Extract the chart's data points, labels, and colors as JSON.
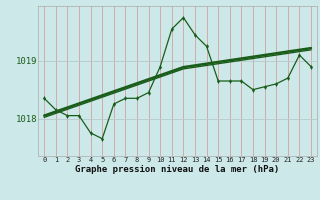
{
  "xlabel": "Graphe pression niveau de la mer (hPa)",
  "background_color": "#cce8e8",
  "grid_color_v": "#d4a0a0",
  "grid_color_h": "#b8c8c8",
  "line_color": "#1a5c1a",
  "hours": [
    0,
    1,
    2,
    3,
    4,
    5,
    6,
    7,
    8,
    9,
    10,
    11,
    12,
    13,
    14,
    15,
    16,
    17,
    18,
    19,
    20,
    21,
    22,
    23
  ],
  "pressure": [
    1018.35,
    1018.15,
    1018.05,
    1018.05,
    1017.75,
    1017.65,
    1018.25,
    1018.35,
    1018.35,
    1018.45,
    1018.9,
    1019.55,
    1019.75,
    1019.45,
    1019.25,
    1018.65,
    1018.65,
    1018.65,
    1018.5,
    1018.55,
    1018.6,
    1018.7,
    1019.1,
    1018.9
  ],
  "trend1": [
    1018.05,
    1018.12,
    1018.19,
    1018.26,
    1018.33,
    1018.4,
    1018.47,
    1018.54,
    1018.61,
    1018.68,
    1018.75,
    1018.82,
    1018.89,
    1018.92,
    1018.95,
    1018.98,
    1019.01,
    1019.04,
    1019.07,
    1019.1,
    1019.13,
    1019.16,
    1019.19,
    1019.22
  ],
  "trend2": [
    1018.02,
    1018.09,
    1018.16,
    1018.23,
    1018.3,
    1018.37,
    1018.44,
    1018.51,
    1018.58,
    1018.65,
    1018.72,
    1018.79,
    1018.86,
    1018.89,
    1018.92,
    1018.95,
    1018.98,
    1019.01,
    1019.04,
    1019.07,
    1019.1,
    1019.13,
    1019.16,
    1019.19
  ],
  "ylim_min": 1017.35,
  "ylim_max": 1019.95,
  "yticks": [
    1018.0,
    1019.0
  ],
  "ytick_labels": [
    "1018",
    "1019"
  ]
}
